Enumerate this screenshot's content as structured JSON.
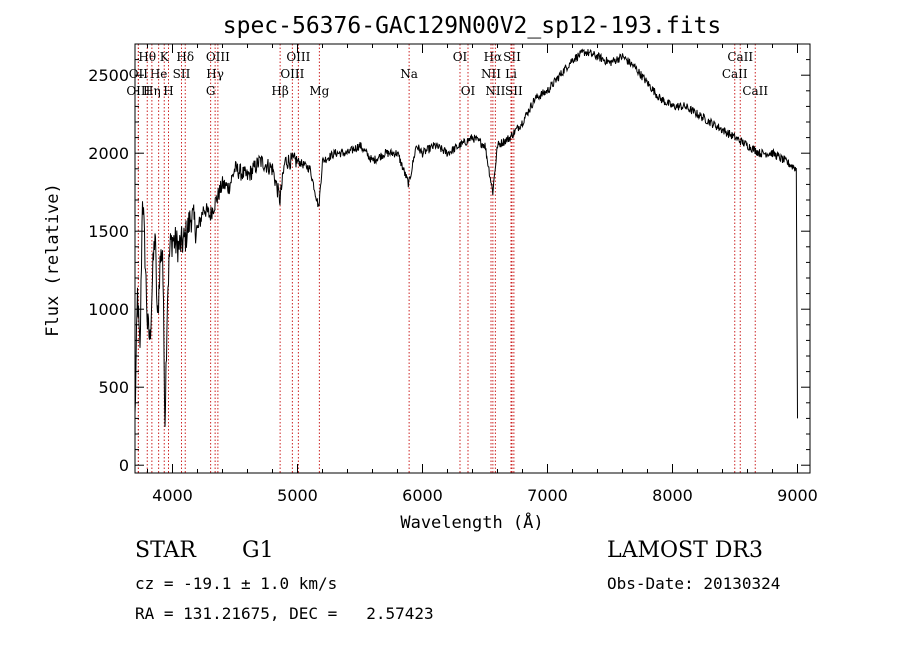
{
  "chart_data": {
    "type": "line",
    "title": "spec-56376-GAC129N00V2_sp12-193.fits",
    "xlabel": "Wavelength (Å)",
    "ylabel": "Flux (relative)",
    "xlim": [
      3700,
      9100
    ],
    "ylim": [
      -50,
      2700
    ],
    "xticks": [
      4000,
      5000,
      6000,
      7000,
      8000,
      9000
    ],
    "yticks": [
      0,
      500,
      1000,
      1500,
      2000,
      2500
    ],
    "x_tick_labels": [
      "4000",
      "5000",
      "6000",
      "7000",
      "8000",
      "9000"
    ],
    "y_tick_labels": [
      "0",
      "500",
      "1000",
      "1500",
      "2000",
      "2500"
    ],
    "grid": false,
    "series": [
      {
        "name": "flux",
        "x": [
          3700,
          3720,
          3740,
          3760,
          3780,
          3800,
          3820,
          3840,
          3860,
          3880,
          3900,
          3920,
          3940,
          3960,
          3980,
          4000,
          4050,
          4100,
          4150,
          4200,
          4250,
          4300,
          4350,
          4400,
          4450,
          4500,
          4600,
          4700,
          4800,
          4860,
          4900,
          5000,
          5100,
          5170,
          5200,
          5300,
          5400,
          5500,
          5600,
          5700,
          5800,
          5890,
          5950,
          6000,
          6100,
          6200,
          6300,
          6400,
          6500,
          6562,
          6600,
          6700,
          6800,
          6900,
          7000,
          7100,
          7200,
          7300,
          7400,
          7500,
          7600,
          7700,
          7800,
          7900,
          8000,
          8100,
          8200,
          8300,
          8400,
          8500,
          8600,
          8700,
          8800,
          8900,
          8990,
          9000
        ],
        "values": [
          300,
          1100,
          700,
          1750,
          1350,
          900,
          800,
          1200,
          1500,
          900,
          1300,
          1400,
          300,
          1100,
          1400,
          1450,
          1400,
          1450,
          1600,
          1500,
          1650,
          1600,
          1700,
          1800,
          1780,
          1900,
          1850,
          1950,
          1900,
          1700,
          1950,
          1950,
          1900,
          1650,
          1950,
          2000,
          2000,
          2050,
          1950,
          2000,
          2000,
          1800,
          2050,
          2000,
          2050,
          2000,
          2050,
          2100,
          2050,
          1750,
          2050,
          2100,
          2200,
          2350,
          2400,
          2500,
          2600,
          2650,
          2620,
          2580,
          2620,
          2550,
          2450,
          2350,
          2300,
          2300,
          2250,
          2200,
          2150,
          2100,
          2050,
          2000,
          2000,
          1950,
          1900,
          300
        ]
      }
    ],
    "line_markers": [
      {
        "label": "Hθ",
        "wavelength": 3798,
        "row": 1
      },
      {
        "label": "K",
        "wavelength": 3934,
        "row": 1
      },
      {
        "label": "Hδ",
        "wavelength": 4102,
        "row": 1
      },
      {
        "label": "OIII",
        "wavelength": 4363,
        "row": 1
      },
      {
        "label": "OIII",
        "wavelength": 5007,
        "row": 1
      },
      {
        "label": "Na",
        "wavelength": 5893,
        "row": 2
      },
      {
        "label": "OI",
        "wavelength": 6300,
        "row": 1
      },
      {
        "label": "Hα",
        "wavelength": 6563,
        "row": 1
      },
      {
        "label": "SII",
        "wavelength": 6716,
        "row": 1
      },
      {
        "label": "CaII",
        "wavelength": 8542,
        "row": 1
      },
      {
        "label": "OII",
        "wavelength": 3727,
        "row": 2
      },
      {
        "label": "He",
        "wavelength": 3889,
        "row": 2
      },
      {
        "label": "SII",
        "wavelength": 4072,
        "row": 2
      },
      {
        "label": "Hγ",
        "wavelength": 4341,
        "row": 2
      },
      {
        "label": "OIII",
        "wavelength": 4959,
        "row": 2
      },
      {
        "label": "NII",
        "wavelength": 6548,
        "row": 2
      },
      {
        "label": "Li",
        "wavelength": 6708,
        "row": 2
      },
      {
        "label": "CaII",
        "wavelength": 8498,
        "row": 2
      },
      {
        "label": "OIII",
        "wavelength": 3727,
        "row": 3
      },
      {
        "label": "Hη",
        "wavelength": 3835,
        "row": 3
      },
      {
        "label": "H",
        "wavelength": 3968,
        "row": 3
      },
      {
        "label": "G",
        "wavelength": 4305,
        "row": 3
      },
      {
        "label": "Hβ",
        "wavelength": 4861,
        "row": 3
      },
      {
        "label": "Mg",
        "wavelength": 5175,
        "row": 3
      },
      {
        "label": "OI",
        "wavelength": 6364,
        "row": 3
      },
      {
        "label": "NII",
        "wavelength": 6583,
        "row": 3
      },
      {
        "label": "SII",
        "wavelength": 6731,
        "row": 3
      },
      {
        "label": "CaII",
        "wavelength": 8662,
        "row": 3
      }
    ]
  },
  "info": {
    "class_label": "STAR",
    "subclass": "G1",
    "survey": "LAMOST DR3",
    "cz": "cz = -19.1 ± 1.0 km/s",
    "obs_date": "Obs-Date: 20130324",
    "coords": "RA = 131.21675, DEC =   2.57423"
  },
  "colors": {
    "line_marker": "#cc2222",
    "spectrum": "#000000"
  }
}
